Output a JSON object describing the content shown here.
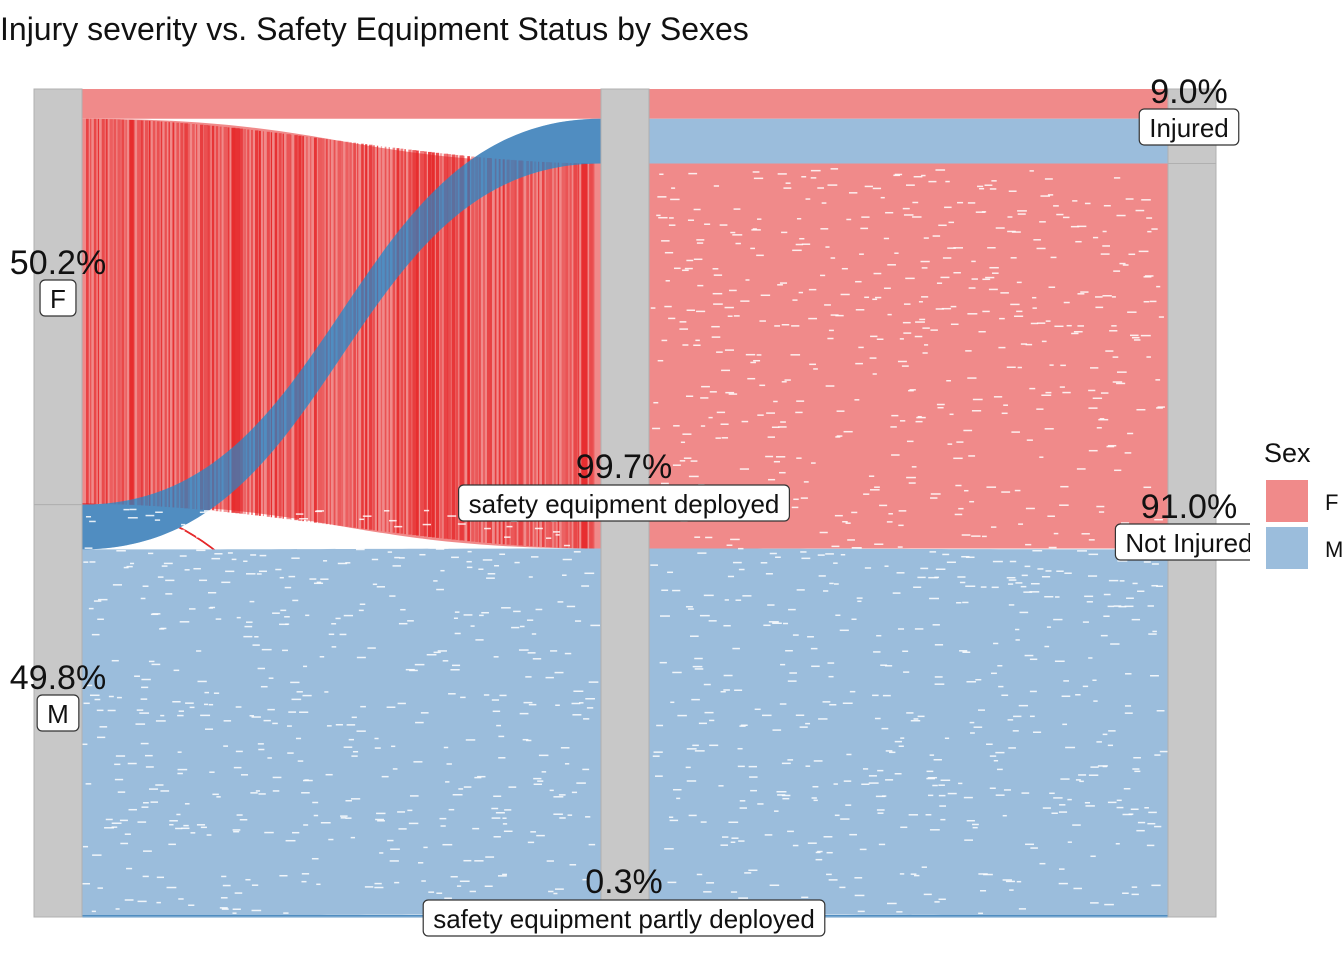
{
  "chart_data": {
    "type": "alluvial",
    "title": "Injury severity vs. Safety Equipment Status by Sexes",
    "axes": [
      {
        "strata": [
          {
            "label": "F",
            "percent": "50.2%",
            "share": 0.502
          },
          {
            "label": "M",
            "percent": "49.8%",
            "share": 0.498
          }
        ]
      },
      {
        "strata": [
          {
            "label": "safety equipment deployed",
            "percent": "99.7%",
            "share": 0.997
          },
          {
            "label": "safety equipment partly deployed",
            "percent": "0.3%",
            "share": 0.003
          }
        ]
      },
      {
        "strata": [
          {
            "label": "Injured",
            "percent": "9.0%",
            "share": 0.09
          },
          {
            "label": "Not Injured",
            "percent": "91.0%",
            "share": 0.91
          }
        ]
      }
    ],
    "flows": [
      {
        "sex": "F",
        "equipment": "safety equipment deployed",
        "injury": "Injured",
        "share": 0.036
      },
      {
        "sex": "F",
        "equipment": "safety equipment deployed",
        "injury": "Not Injured",
        "share": 0.465
      },
      {
        "sex": "F",
        "equipment": "safety equipment partly deployed",
        "injury": "Not Injured",
        "share": 0.001
      },
      {
        "sex": "M",
        "equipment": "safety equipment deployed",
        "injury": "Injured",
        "share": 0.054
      },
      {
        "sex": "M",
        "equipment": "safety equipment deployed",
        "injury": "Not Injured",
        "share": 0.442
      },
      {
        "sex": "M",
        "equipment": "safety equipment partly deployed",
        "injury": "Not Injured",
        "share": 0.002
      }
    ],
    "legend": {
      "title": "Sex",
      "position": "right",
      "items": [
        {
          "label": "F",
          "color": "#f08a8a"
        },
        {
          "label": "M",
          "color": "#9bbddc"
        }
      ]
    },
    "colors": {
      "F": "#f08a8a",
      "M": "#9bbddc",
      "F_dark": "#e41a1c",
      "M_dark": "#377eb8",
      "stratum": "#c8c8c8"
    }
  }
}
